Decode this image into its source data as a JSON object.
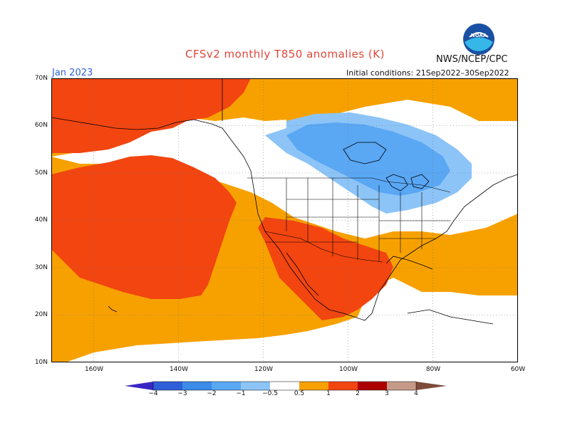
{
  "header": {
    "title": "CFSv2 monthly T850 anomalies (K)",
    "agency": "NWS/NCEP/CPC",
    "logo_text": "NOAA",
    "month": "Jan 2023",
    "initial_conditions": "Initial conditions: 21Sep2022–30Sep2022"
  },
  "axes": {
    "lat_labels": [
      "70N",
      "60N",
      "50N",
      "40N",
      "30N",
      "20N",
      "10N"
    ],
    "lon_labels": [
      "160W",
      "140W",
      "120W",
      "100W",
      "80W",
      "60W"
    ]
  },
  "colorbar": {
    "labels": [
      "−4",
      "−3",
      "−2",
      "−1",
      "−0.5",
      "0.5",
      "1",
      "2",
      "3",
      "4"
    ],
    "colors": [
      "#3a26c4",
      "#2f5fd8",
      "#3b8be8",
      "#5aa7f4",
      "#8cc4f7",
      "#ffffff",
      "#f7a100",
      "#f24510",
      "#ad0000",
      "#c69a88",
      "#7e4a3a"
    ]
  },
  "anomaly_colors": {
    "light_warm": "#f7a100",
    "warm": "#f24510",
    "light_cool": "#8cc4f7",
    "cool": "#5aa7f4",
    "cooler": "#3b8be8"
  }
}
